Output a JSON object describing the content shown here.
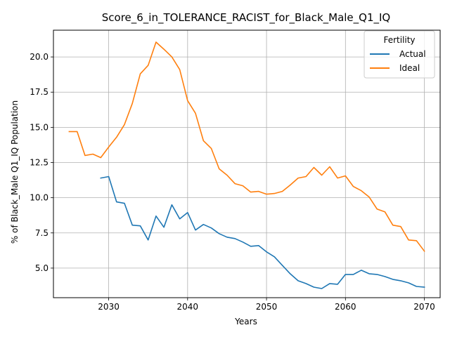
{
  "chart_data": {
    "type": "line",
    "title": "Score_6_in_TOLERANCE_RACIST_for_Black_Male_Q1_IQ",
    "xlabel": "Years",
    "ylabel": "% of Black_Male Q1_IQ Population",
    "xlim": [
      2023,
      2072
    ],
    "ylim": [
      2.9,
      21.9
    ],
    "xticks": [
      2030,
      2040,
      2050,
      2060,
      2070
    ],
    "yticks": [
      5.0,
      7.5,
      10.0,
      12.5,
      15.0,
      17.5,
      20.0
    ],
    "xtick_labels": [
      "2030",
      "2040",
      "2050",
      "2060",
      "2070"
    ],
    "ytick_labels": [
      "5.0",
      "7.5",
      "10.0",
      "12.5",
      "15.0",
      "17.5",
      "20.0"
    ],
    "grid": true,
    "legend": {
      "title": "Fertility",
      "placement": "top-right"
    },
    "series": [
      {
        "name": "Actual",
        "color": "#1f77b4",
        "x": [
          2029,
          2030,
          2031,
          2032,
          2033,
          2034,
          2035,
          2036,
          2037,
          2038,
          2039,
          2040,
          2041,
          2042,
          2043,
          2044,
          2045,
          2046,
          2047,
          2048,
          2049,
          2050,
          2051,
          2052,
          2053,
          2054,
          2055,
          2056,
          2057,
          2058,
          2059,
          2060,
          2061,
          2062,
          2063,
          2064,
          2065,
          2066,
          2067,
          2068,
          2069,
          2070
        ],
        "values": [
          11.4,
          11.5,
          9.7,
          9.6,
          8.05,
          8.0,
          7.0,
          8.7,
          7.9,
          9.5,
          8.5,
          8.95,
          7.7,
          8.1,
          7.85,
          7.45,
          7.2,
          7.1,
          6.85,
          6.55,
          6.6,
          6.15,
          5.8,
          5.2,
          4.6,
          4.1,
          3.9,
          3.65,
          3.55,
          3.9,
          3.85,
          4.55,
          4.55,
          4.85,
          4.6,
          4.55,
          4.4,
          4.2,
          4.1,
          3.95,
          3.7,
          3.65
        ]
      },
      {
        "name": "Ideal",
        "color": "#ff7f0e",
        "x": [
          2025,
          2026,
          2027,
          2028,
          2029,
          2030,
          2031,
          2032,
          2033,
          2034,
          2035,
          2036,
          2037,
          2038,
          2039,
          2040,
          2041,
          2042,
          2043,
          2044,
          2045,
          2046,
          2047,
          2048,
          2049,
          2050,
          2051,
          2052,
          2053,
          2054,
          2055,
          2056,
          2057,
          2058,
          2059,
          2060,
          2061,
          2062,
          2063,
          2064,
          2065,
          2066,
          2067,
          2068,
          2069,
          2070
        ],
        "values": [
          14.7,
          14.7,
          13.0,
          13.1,
          12.85,
          13.6,
          14.3,
          15.2,
          16.7,
          18.8,
          19.4,
          21.05,
          20.55,
          20.0,
          19.1,
          16.9,
          16.0,
          14.05,
          13.5,
          12.05,
          11.6,
          11.0,
          10.85,
          10.4,
          10.45,
          10.25,
          10.3,
          10.45,
          10.9,
          11.4,
          11.5,
          12.15,
          11.6,
          12.2,
          11.4,
          11.55,
          10.8,
          10.5,
          10.05,
          9.2,
          9.0,
          8.05,
          7.95,
          7.0,
          6.95,
          6.2
        ]
      }
    ]
  }
}
